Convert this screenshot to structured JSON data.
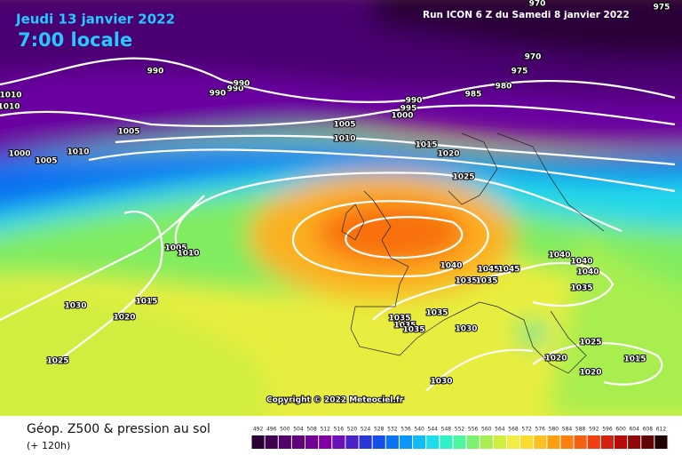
{
  "header": {
    "date": "Jeudi 13 janvier 2022",
    "time": "7:00 locale",
    "run": "Run ICON 6 Z du Samedi 8 janvier 2022"
  },
  "copyright": "Copyright © 2022 Meteociel.fr",
  "footer": {
    "title": "Géop. Z500 & pression au sol",
    "lead": "(+ 120h)"
  },
  "scale": {
    "labels": [
      "492",
      "496",
      "500",
      "504",
      "508",
      "512",
      "516",
      "520",
      "524",
      "528",
      "532",
      "536",
      "540",
      "544",
      "548",
      "552",
      "556",
      "560",
      "564",
      "568",
      "572",
      "576",
      "580",
      "584",
      "588",
      "592",
      "596",
      "600",
      "604",
      "608",
      "612"
    ],
    "colors": [
      "#2a0033",
      "#3f0050",
      "#52006a",
      "#62007e",
      "#720092",
      "#8000a4",
      "#6a10b4",
      "#4a22c6",
      "#2a36d8",
      "#1450e8",
      "#0a72f4",
      "#0a96fa",
      "#10bcf8",
      "#20dcea",
      "#30f0c8",
      "#4ff4a0",
      "#7cf070",
      "#a8ee50",
      "#d0ee40",
      "#f0ee40",
      "#fadc30",
      "#fcc020",
      "#fca010",
      "#fa8010",
      "#f46010",
      "#ec4010",
      "#d82010",
      "#b80c0c",
      "#900808",
      "#600404",
      "#200000"
    ]
  },
  "isobars": [
    "975",
    "970",
    "970",
    "975",
    "990",
    "990",
    "990",
    "990",
    "980",
    "985",
    "990",
    "995",
    "1000",
    "1010",
    "1010",
    "1005",
    "1005",
    "1010",
    "1000",
    "1005",
    "1010",
    "1015",
    "1020",
    "1025",
    "1005",
    "1010",
    "1040",
    "1045",
    "1045",
    "1040",
    "1040",
    "1040",
    "1035",
    "1035",
    "1035",
    "1030",
    "1015",
    "1020",
    "1035",
    "1035",
    "1035",
    "1035",
    "1030",
    "1025",
    "1025",
    "1020",
    "1015",
    "1020",
    "1030"
  ]
}
